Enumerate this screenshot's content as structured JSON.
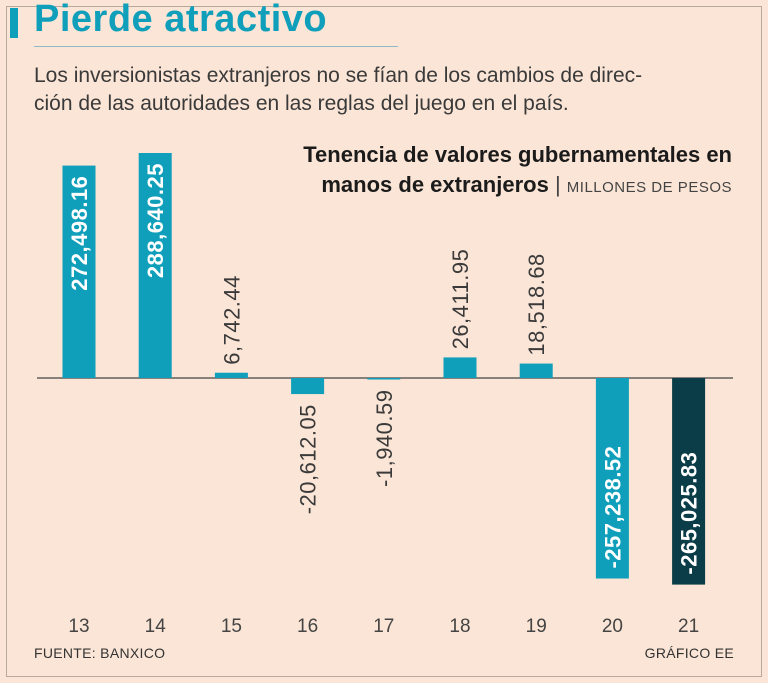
{
  "header": {
    "title": "Pierde atractivo",
    "subtitle_line1": "Los inversionistas extranjeros no se fían de los cambios de direc-",
    "subtitle_line2": "ción de las autoridades en las reglas del juego en el país."
  },
  "chart_title": {
    "line1": "Tenencia de valores gubernamentales en",
    "line2": "manos de extranjeros",
    "separator": "|",
    "unit": "MILLONES DE PESOS"
  },
  "footer": {
    "source": "FUENTE: BANXICO",
    "credit": "GRÁFICO EE"
  },
  "colors": {
    "accent": "#0f9fba",
    "highlight": "#0b3d48",
    "background": "#fbe5d6"
  },
  "chart_data": {
    "type": "bar",
    "title": "Tenencia de valores gubernamentales en manos de extranjeros",
    "ylabel": "Millones de pesos",
    "xlabel": "",
    "categories": [
      "13",
      "14",
      "15",
      "16",
      "17",
      "18",
      "19",
      "20",
      "21"
    ],
    "values": [
      272498.16,
      288640.25,
      6742.44,
      -20612.05,
      -1940.59,
      26411.95,
      18518.68,
      -257238.52,
      -265025.83
    ],
    "labels": [
      "272,498.16",
      "288,640.25",
      "6,742.44",
      "-20,612.05",
      "-1,940.59",
      "26,411.95",
      "18,518.68",
      "-257,238.52",
      "-265,025.83"
    ],
    "highlight_index": 8,
    "ylim": [
      -265025.83,
      288640.25
    ],
    "grid": false
  }
}
